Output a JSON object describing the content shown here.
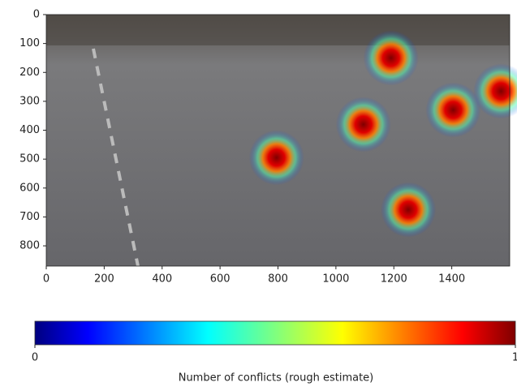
{
  "chart_data": {
    "type": "heatmap-overlay",
    "x": [
      1190,
      1570,
      1405,
      1095,
      795,
      1250
    ],
    "y": [
      150,
      265,
      330,
      380,
      495,
      675
    ],
    "xlim": [
      0,
      1600
    ],
    "ylim": [
      870,
      0
    ],
    "y_inverted": true,
    "xticks": [
      0,
      200,
      400,
      600,
      800,
      1000,
      1200,
      1400
    ],
    "yticks": [
      0,
      100,
      200,
      300,
      400,
      500,
      600,
      700,
      800
    ],
    "colormap": "jet",
    "colorbar": {
      "label": "Number of conflicts (rough estimate)",
      "clim": [
        0,
        1
      ],
      "ticks": [
        0,
        1
      ]
    }
  }
}
